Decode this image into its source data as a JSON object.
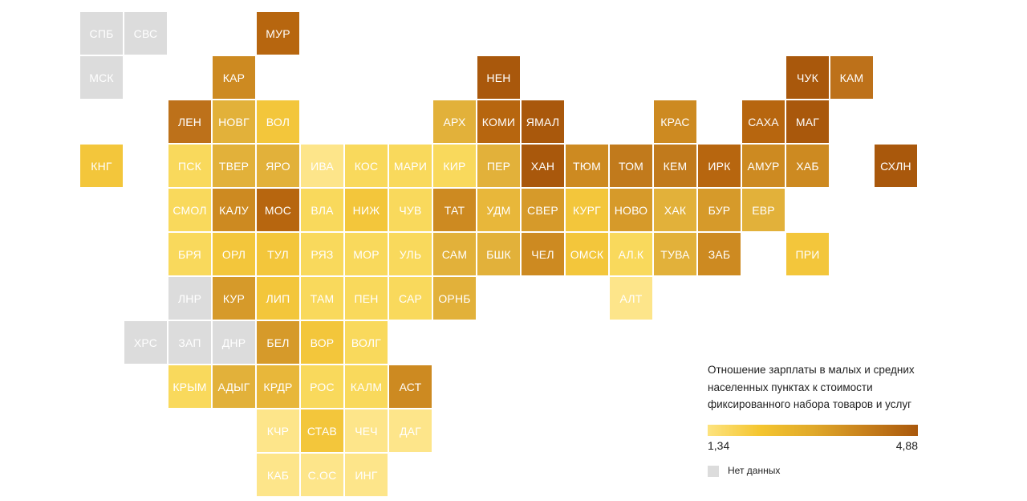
{
  "legend": {
    "title": "Отношение зарплаты в малых и средних населенных пунктах к стоимости фиксированного набора товаров и услуг",
    "min_label": "1,34",
    "max_label": "4,88",
    "no_data_label": "Нет данных",
    "gradient_colors": [
      "#fde37f",
      "#f4c52f",
      "#e0a92a",
      "#c7801c",
      "#a9580c"
    ],
    "no_data_color": "#dcdcdc"
  },
  "regions": [
    {
      "label": "СПБ",
      "row": 0,
      "col": 0,
      "color": "#dcdcdc"
    },
    {
      "label": "СВС",
      "row": 0,
      "col": 1,
      "color": "#dcdcdc"
    },
    {
      "label": "МУР",
      "row": 0,
      "col": 4,
      "color": "#b7660f"
    },
    {
      "label": "МСК",
      "row": 1,
      "col": 0,
      "color": "#dcdcdc"
    },
    {
      "label": "КАР",
      "row": 1,
      "col": 3,
      "color": "#cd8a21"
    },
    {
      "label": "НЕН",
      "row": 1,
      "col": 9,
      "color": "#a9580c"
    },
    {
      "label": "ЧУК",
      "row": 1,
      "col": 16,
      "color": "#a9580c"
    },
    {
      "label": "КАМ",
      "row": 1,
      "col": 17,
      "color": "#bd711a"
    },
    {
      "label": "ЛЕН",
      "row": 2,
      "col": 2,
      "color": "#bd711a"
    },
    {
      "label": "НОВГ",
      "row": 2,
      "col": 3,
      "color": "#e2b13a"
    },
    {
      "label": "ВОЛ",
      "row": 2,
      "col": 4,
      "color": "#f3c63b"
    },
    {
      "label": "АРХ",
      "row": 2,
      "col": 8,
      "color": "#e2b13a"
    },
    {
      "label": "КОМИ",
      "row": 2,
      "col": 9,
      "color": "#b7660f"
    },
    {
      "label": "ЯМАЛ",
      "row": 2,
      "col": 10,
      "color": "#a9580c"
    },
    {
      "label": "КРАС",
      "row": 2,
      "col": 13,
      "color": "#cd8a21"
    },
    {
      "label": "САХА",
      "row": 2,
      "col": 15,
      "color": "#b7660f"
    },
    {
      "label": "МАГ",
      "row": 2,
      "col": 16,
      "color": "#a9580c"
    },
    {
      "label": "КНГ",
      "row": 3,
      "col": 0,
      "color": "#f3c63b"
    },
    {
      "label": "ПСК",
      "row": 3,
      "col": 2,
      "color": "#f9d95c"
    },
    {
      "label": "ТВЕР",
      "row": 3,
      "col": 3,
      "color": "#e2b13a"
    },
    {
      "label": "ЯРО",
      "row": 3,
      "col": 4,
      "color": "#e2b13a"
    },
    {
      "label": "ИВА",
      "row": 3,
      "col": 5,
      "color": "#fde58a"
    },
    {
      "label": "КОС",
      "row": 3,
      "col": 6,
      "color": "#f9d95c"
    },
    {
      "label": "МАРИ",
      "row": 3,
      "col": 7,
      "color": "#f9d95c"
    },
    {
      "label": "КИР",
      "row": 3,
      "col": 8,
      "color": "#f9d95c"
    },
    {
      "label": "ПЕР",
      "row": 3,
      "col": 9,
      "color": "#e2b13a"
    },
    {
      "label": "ХАН",
      "row": 3,
      "col": 10,
      "color": "#a9580c"
    },
    {
      "label": "ТЮМ",
      "row": 3,
      "col": 11,
      "color": "#cd8a21"
    },
    {
      "label": "ТОМ",
      "row": 3,
      "col": 12,
      "color": "#c17a1c"
    },
    {
      "label": "КЕМ",
      "row": 3,
      "col": 13,
      "color": "#c17a1c"
    },
    {
      "label": "ИРК",
      "row": 3,
      "col": 14,
      "color": "#b7660f"
    },
    {
      "label": "АМУР",
      "row": 3,
      "col": 15,
      "color": "#cd8a21"
    },
    {
      "label": "ХАБ",
      "row": 3,
      "col": 16,
      "color": "#cd8a21"
    },
    {
      "label": "СХЛН",
      "row": 3,
      "col": 18,
      "color": "#a9580c"
    },
    {
      "label": "СМОЛ",
      "row": 4,
      "col": 2,
      "color": "#f9d95c"
    },
    {
      "label": "КАЛУ",
      "row": 4,
      "col": 3,
      "color": "#cd8a21"
    },
    {
      "label": "МОС",
      "row": 4,
      "col": 4,
      "color": "#b7660f"
    },
    {
      "label": "ВЛА",
      "row": 4,
      "col": 5,
      "color": "#f9d95c"
    },
    {
      "label": "НИЖ",
      "row": 4,
      "col": 6,
      "color": "#f3c63b"
    },
    {
      "label": "ЧУВ",
      "row": 4,
      "col": 7,
      "color": "#f9d95c"
    },
    {
      "label": "ТАТ",
      "row": 4,
      "col": 8,
      "color": "#cd8a21"
    },
    {
      "label": "УДМ",
      "row": 4,
      "col": 9,
      "color": "#e8b73a"
    },
    {
      "label": "СВЕР",
      "row": 4,
      "col": 10,
      "color": "#d69a2a"
    },
    {
      "label": "КУРГ",
      "row": 4,
      "col": 11,
      "color": "#f3c63b"
    },
    {
      "label": "НОВО",
      "row": 4,
      "col": 12,
      "color": "#d69a2a"
    },
    {
      "label": "ХАК",
      "row": 4,
      "col": 13,
      "color": "#e2b13a"
    },
    {
      "label": "БУР",
      "row": 4,
      "col": 14,
      "color": "#d69a2a"
    },
    {
      "label": "ЕВР",
      "row": 4,
      "col": 15,
      "color": "#e2b13a"
    },
    {
      "label": "БРЯ",
      "row": 5,
      "col": 2,
      "color": "#f9d95c"
    },
    {
      "label": "ОРЛ",
      "row": 5,
      "col": 3,
      "color": "#f3c63b"
    },
    {
      "label": "ТУЛ",
      "row": 5,
      "col": 4,
      "color": "#f3c63b"
    },
    {
      "label": "РЯЗ",
      "row": 5,
      "col": 5,
      "color": "#f9d95c"
    },
    {
      "label": "МОР",
      "row": 5,
      "col": 6,
      "color": "#f9d95c"
    },
    {
      "label": "УЛЬ",
      "row": 5,
      "col": 7,
      "color": "#f9d95c"
    },
    {
      "label": "САМ",
      "row": 5,
      "col": 8,
      "color": "#e2b13a"
    },
    {
      "label": "БШК",
      "row": 5,
      "col": 9,
      "color": "#e2b13a"
    },
    {
      "label": "ЧЕЛ",
      "row": 5,
      "col": 10,
      "color": "#cd8a21"
    },
    {
      "label": "ОМСК",
      "row": 5,
      "col": 11,
      "color": "#f3c63b"
    },
    {
      "label": "АЛ.К",
      "row": 5,
      "col": 12,
      "color": "#f9d95c"
    },
    {
      "label": "ТУВА",
      "row": 5,
      "col": 13,
      "color": "#e2b13a"
    },
    {
      "label": "ЗАБ",
      "row": 5,
      "col": 14,
      "color": "#cd8a21"
    },
    {
      "label": "ПРИ",
      "row": 5,
      "col": 16,
      "color": "#f3c63b"
    },
    {
      "label": "ЛНР",
      "row": 6,
      "col": 2,
      "color": "#dcdcdc"
    },
    {
      "label": "КУР",
      "row": 6,
      "col": 3,
      "color": "#d69a2a"
    },
    {
      "label": "ЛИП",
      "row": 6,
      "col": 4,
      "color": "#f3c63b"
    },
    {
      "label": "ТАМ",
      "row": 6,
      "col": 5,
      "color": "#f9d95c"
    },
    {
      "label": "ПЕН",
      "row": 6,
      "col": 6,
      "color": "#f9d95c"
    },
    {
      "label": "САР",
      "row": 6,
      "col": 7,
      "color": "#f9d95c"
    },
    {
      "label": "ОРНБ",
      "row": 6,
      "col": 8,
      "color": "#e2b13a"
    },
    {
      "label": "АЛТ",
      "row": 6,
      "col": 12,
      "color": "#fde58a"
    },
    {
      "label": "ХРС",
      "row": 7,
      "col": 1,
      "color": "#dcdcdc"
    },
    {
      "label": "ЗАП",
      "row": 7,
      "col": 2,
      "color": "#dcdcdc"
    },
    {
      "label": "ДНР",
      "row": 7,
      "col": 3,
      "color": "#dcdcdc"
    },
    {
      "label": "БЕЛ",
      "row": 7,
      "col": 4,
      "color": "#d69a2a"
    },
    {
      "label": "ВОР",
      "row": 7,
      "col": 5,
      "color": "#f3c63b"
    },
    {
      "label": "ВОЛГ",
      "row": 7,
      "col": 6,
      "color": "#f9d95c"
    },
    {
      "label": "КРЫМ",
      "row": 8,
      "col": 2,
      "color": "#f9d95c"
    },
    {
      "label": "АДЫГ",
      "row": 8,
      "col": 3,
      "color": "#e2b13a"
    },
    {
      "label": "КРДР",
      "row": 8,
      "col": 4,
      "color": "#e8b73a"
    },
    {
      "label": "РОС",
      "row": 8,
      "col": 5,
      "color": "#f9d95c"
    },
    {
      "label": "КАЛМ",
      "row": 8,
      "col": 6,
      "color": "#f9d95c"
    },
    {
      "label": "АСТ",
      "row": 8,
      "col": 7,
      "color": "#cd8a21"
    },
    {
      "label": "КЧР",
      "row": 9,
      "col": 4,
      "color": "#fde58a"
    },
    {
      "label": "СТАВ",
      "row": 9,
      "col": 5,
      "color": "#f3c63b"
    },
    {
      "label": "ЧЕЧ",
      "row": 9,
      "col": 6,
      "color": "#fde58a"
    },
    {
      "label": "ДАГ",
      "row": 9,
      "col": 7,
      "color": "#fde58a"
    },
    {
      "label": "КАБ",
      "row": 10,
      "col": 4,
      "color": "#fde58a"
    },
    {
      "label": "С.ОС",
      "row": 10,
      "col": 5,
      "color": "#fde58a"
    },
    {
      "label": "ИНГ",
      "row": 10,
      "col": 6,
      "color": "#fde58a"
    }
  ]
}
